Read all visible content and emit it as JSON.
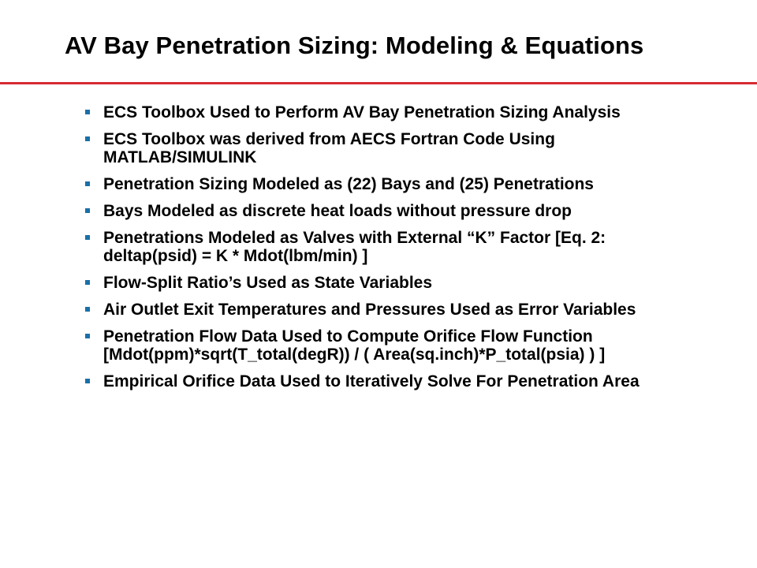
{
  "slide": {
    "title": "AV Bay Penetration Sizing: Modeling & Equations",
    "accent_color": "#d72b34",
    "bullet_color": "#1b6fa6",
    "bullets": [
      {
        "lines": [
          "ECS Toolbox Used to Perform AV Bay Penetration Sizing Analysis"
        ]
      },
      {
        "lines": [
          "ECS Toolbox was derived from AECS Fortran Code Using",
          "MATLAB/SIMULINK"
        ]
      },
      {
        "lines": [
          "Penetration Sizing Modeled as (22) Bays and (25) Penetrations"
        ]
      },
      {
        "lines": [
          "Bays Modeled as discrete heat loads without pressure drop"
        ]
      },
      {
        "lines": [
          "Penetrations Modeled as Valves with External “K” Factor [Eq. 2:",
          "deltap(psid) = K * Mdot(lbm/min) ]"
        ]
      },
      {
        "lines": [
          "Flow-Split Ratio’s Used as State Variables"
        ]
      },
      {
        "lines": [
          "Air Outlet Exit Temperatures and Pressures Used as Error Variables"
        ]
      },
      {
        "lines": [
          "Penetration Flow Data Used to Compute Orifice Flow Function",
          "[Mdot(ppm)*sqrt(T_total(degR)) / ( Area(sq.inch)*P_total(psia) ) ]"
        ]
      },
      {
        "lines": [
          "Empirical Orifice Data Used to Iteratively Solve For Penetration Area"
        ]
      }
    ]
  }
}
